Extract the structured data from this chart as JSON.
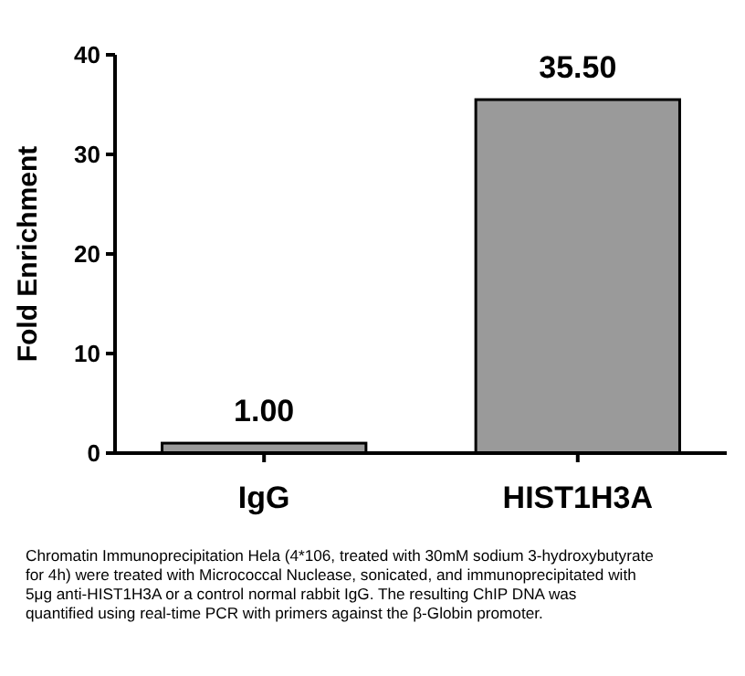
{
  "chart_data": {
    "type": "bar",
    "ylabel": "Fold Enrichment",
    "categories": [
      "IgG",
      "HIST1H3A"
    ],
    "values": [
      1,
      35.5
    ],
    "value_labels": [
      "1.00",
      "35.50"
    ],
    "color": "#9a9a9a",
    "ylim": [
      0,
      40
    ],
    "yticks": [
      0,
      10,
      20,
      30,
      40
    ],
    "grid": false,
    "annotations": [
      "Chromatin Immunoprecipitation Hela (4*106, treated with 30mM sodium 3-hydroxybutyrate for 4h) were treated with Micrococcal Nuclease, sonicated, and immunoprecipitated with 5μg anti-HIST1H3A or a control normal rabbit IgG. The resulting ChIP DNA was quantified using real-time PCR with primers against the β-Globin promoter."
    ]
  }
}
